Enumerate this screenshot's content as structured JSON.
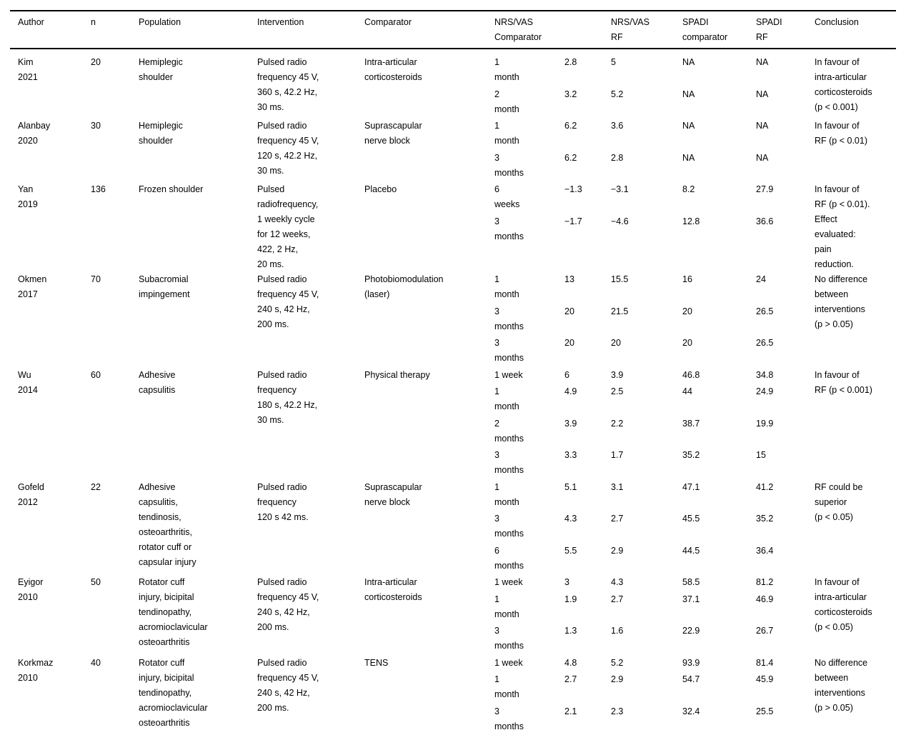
{
  "table": {
    "headers": [
      "Author",
      "n",
      "Population",
      "Intervention",
      "Comparator",
      "NRS/VAS\nComparator",
      "NRS/VAS\nRF",
      "SPADI\ncomparator",
      "SPADI\nRF",
      "Conclusion"
    ],
    "studies": [
      {
        "author": "Kim\n2021",
        "n": "20",
        "population": "Hemiplegic\nshoulder",
        "intervention": "Pulsed radio\nfrequency 45 V,\n360 s, 42.2 Hz,\n30 ms.",
        "comparator": "Intra-articular\ncorticosteroids",
        "timepoints": [
          {
            "time": "1\nmonth",
            "nrs_vas_comparator": "2.8",
            "nrs_vas_rf": "5",
            "spadi_comparator": "NA",
            "spadi_rf": "NA"
          },
          {
            "time": "2\nmonth",
            "nrs_vas_comparator": "3.2",
            "nrs_vas_rf": "5.2",
            "spadi_comparator": "NA",
            "spadi_rf": "NA"
          }
        ],
        "conclusion": "In favour of\nintra-articular\ncorticosteroids\n(p < 0.001)"
      },
      {
        "author": "Alanbay\n2020",
        "n": "30",
        "population": "Hemiplegic\nshoulder",
        "intervention": "Pulsed radio\nfrequency 45 V,\n120 s, 42.2 Hz,\n30 ms.",
        "comparator": "Suprascapular\nnerve block",
        "timepoints": [
          {
            "time": "1\nmonth",
            "nrs_vas_comparator": "6.2",
            "nrs_vas_rf": "3.6",
            "spadi_comparator": "NA",
            "spadi_rf": "NA"
          },
          {
            "time": "3\nmonths",
            "nrs_vas_comparator": "6.2",
            "nrs_vas_rf": "2.8",
            "spadi_comparator": "NA",
            "spadi_rf": "NA"
          }
        ],
        "conclusion": "In favour of\nRF (p < 0.01)"
      },
      {
        "author": "Yan\n2019",
        "n": "136",
        "population": "Frozen shoulder",
        "intervention": "Pulsed\nradiofrequency,\n1 weekly cycle\nfor 12 weeks,\n422, 2 Hz,\n20 ms.",
        "comparator": "Placebo",
        "timepoints": [
          {
            "time": "6\nweeks",
            "nrs_vas_comparator": "−1.3",
            "nrs_vas_rf": "−3.1",
            "spadi_comparator": "8.2",
            "spadi_rf": "27.9"
          },
          {
            "time": "3\nmonths",
            "nrs_vas_comparator": "−1.7",
            "nrs_vas_rf": "−4.6",
            "spadi_comparator": "12.8",
            "spadi_rf": "36.6"
          }
        ],
        "conclusion": "In favour of\nRF (p < 0.01).\nEffect\nevaluated:\npain\nreduction."
      },
      {
        "author": "Okmen\n2017",
        "n": "70",
        "population": "Subacromial\nimpingement",
        "intervention": "Pulsed radio\nfrequency 45 V,\n240 s, 42 Hz,\n200 ms.",
        "comparator": "Photobiomodulation\n(laser)",
        "timepoints": [
          {
            "time": "1\nmonth",
            "nrs_vas_comparator": "13",
            "nrs_vas_rf": "15.5",
            "spadi_comparator": "16",
            "spadi_rf": "24"
          },
          {
            "time": "3\nmonths",
            "nrs_vas_comparator": "20",
            "nrs_vas_rf": "21.5",
            "spadi_comparator": "20",
            "spadi_rf": "26.5"
          },
          {
            "time": "3\nmonths",
            "nrs_vas_comparator": "20",
            "nrs_vas_rf": "20",
            "spadi_comparator": "20",
            "spadi_rf": "26.5"
          }
        ],
        "conclusion": "No difference\nbetween\ninterventions\n(p > 0.05)"
      },
      {
        "author": "Wu\n2014",
        "n": "60",
        "population": "Adhesive\ncapsulitis",
        "intervention": "Pulsed radio\nfrequency\n180 s, 42.2 Hz,\n30 ms.",
        "comparator": "Physical therapy",
        "timepoints": [
          {
            "time": "1 week",
            "nrs_vas_comparator": "6",
            "nrs_vas_rf": "3.9",
            "spadi_comparator": "46.8",
            "spadi_rf": "34.8"
          },
          {
            "time": "1\nmonth",
            "nrs_vas_comparator": "4.9",
            "nrs_vas_rf": "2.5",
            "spadi_comparator": "44",
            "spadi_rf": "24.9"
          },
          {
            "time": "2\nmonths",
            "nrs_vas_comparator": "3.9",
            "nrs_vas_rf": "2.2",
            "spadi_comparator": "38.7",
            "spadi_rf": "19.9"
          },
          {
            "time": "3\nmonths",
            "nrs_vas_comparator": "3.3",
            "nrs_vas_rf": "1.7",
            "spadi_comparator": "35.2",
            "spadi_rf": "15"
          }
        ],
        "conclusion": "In favour of\nRF (p < 0.001)"
      },
      {
        "author": "Gofeld\n2012",
        "n": "22",
        "population": "Adhesive\ncapsulitis,\ntendinosis,\nosteoarthritis,\nrotator cuff or\ncapsular injury",
        "intervention": "Pulsed radio\nfrequency\n120 s 42 ms.",
        "comparator": "Suprascapular\nnerve block",
        "timepoints": [
          {
            "time": "1\nmonth",
            "nrs_vas_comparator": "5.1",
            "nrs_vas_rf": "3.1",
            "spadi_comparator": "47.1",
            "spadi_rf": "41.2"
          },
          {
            "time": "3\nmonths",
            "nrs_vas_comparator": "4.3",
            "nrs_vas_rf": "2.7",
            "spadi_comparator": "45.5",
            "spadi_rf": "35.2"
          },
          {
            "time": "6\nmonths",
            "nrs_vas_comparator": "5.5",
            "nrs_vas_rf": "2.9",
            "spadi_comparator": "44.5",
            "spadi_rf": "36.4"
          }
        ],
        "conclusion": "RF could be\nsuperior\n(p < 0.05)"
      },
      {
        "author": "Eyigor\n2010",
        "n": "50",
        "population": "Rotator cuff\ninjury, bicipital\ntendinopathy,\nacromioclavicular\nosteoarthritis",
        "intervention": "Pulsed radio\nfrequency 45 V,\n240 s, 42 Hz,\n200 ms.",
        "comparator": "Intra-articular\ncorticosteroids",
        "timepoints": [
          {
            "time": "1 week",
            "nrs_vas_comparator": "3",
            "nrs_vas_rf": "4.3",
            "spadi_comparator": "58.5",
            "spadi_rf": "81.2"
          },
          {
            "time": "1\nmonth",
            "nrs_vas_comparator": "1.9",
            "nrs_vas_rf": "2.7",
            "spadi_comparator": "37.1",
            "spadi_rf": "46.9"
          },
          {
            "time": "3\nmonths",
            "nrs_vas_comparator": "1.3",
            "nrs_vas_rf": "1.6",
            "spadi_comparator": "22.9",
            "spadi_rf": "26.7"
          }
        ],
        "conclusion": "In favour of\nintra-articular\ncorticosteroids\n(p < 0.05)"
      },
      {
        "author": "Korkmaz\n2010",
        "n": "40",
        "population": "Rotator cuff\ninjury, bicipital\ntendinopathy,\nacromioclavicular\nosteoarthritis",
        "intervention": "Pulsed radio\nfrequency 45 V,\n240 s, 42 Hz,\n200 ms.",
        "comparator": "TENS",
        "timepoints": [
          {
            "time": "1 week",
            "nrs_vas_comparator": "4.8",
            "nrs_vas_rf": "5.2",
            "spadi_comparator": "93.9",
            "spadi_rf": "81.4"
          },
          {
            "time": "1\nmonth",
            "nrs_vas_comparator": "2.7",
            "nrs_vas_rf": "2.9",
            "spadi_comparator": "54.7",
            "spadi_rf": "45.9"
          },
          {
            "time": "3\nmonths",
            "nrs_vas_comparator": "2.1",
            "nrs_vas_rf": "2.3",
            "spadi_comparator": "32.4",
            "spadi_rf": "25.5"
          }
        ],
        "conclusion": "No difference\nbetween\ninterventions\n(p > 0.05)"
      }
    ]
  }
}
